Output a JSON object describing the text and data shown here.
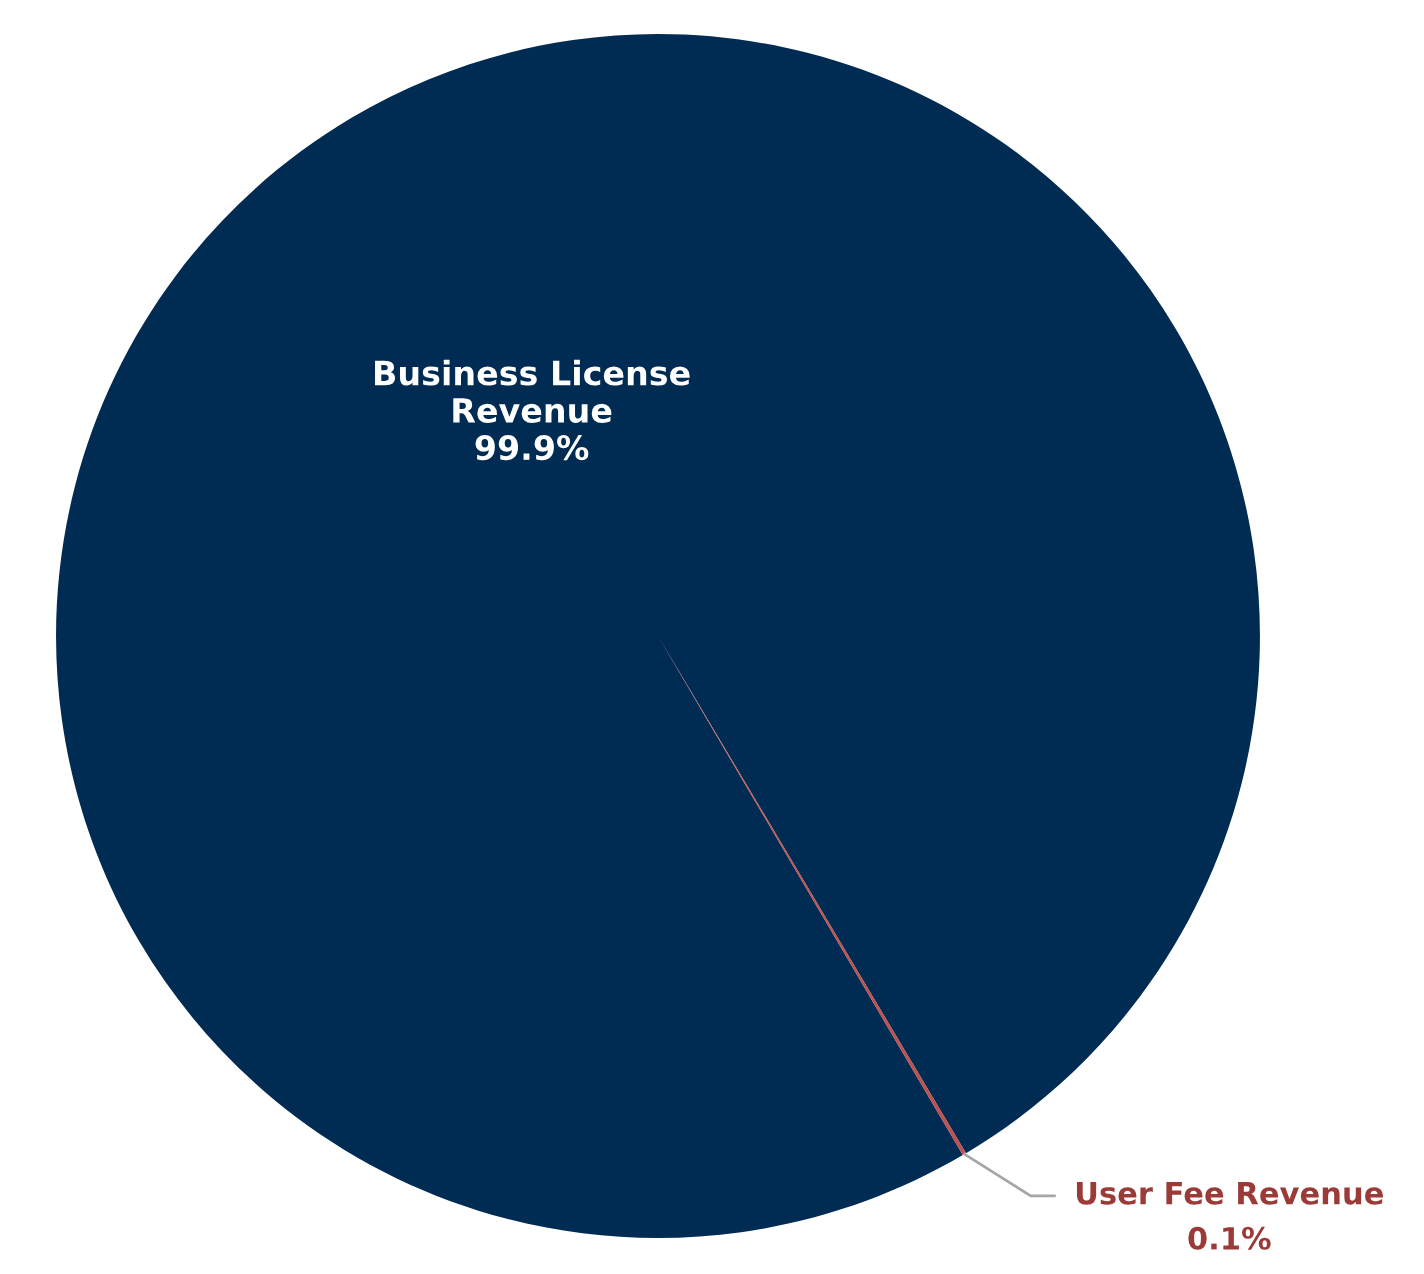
{
  "chart_data": {
    "type": "pie",
    "categories": [
      "Business License Revenue",
      "User Fee Revenue"
    ],
    "values": [
      99.9,
      0.1
    ],
    "value_labels": [
      "99.9%",
      "0.1%"
    ],
    "colors": [
      "#002b52",
      "#c0504d"
    ]
  }
}
